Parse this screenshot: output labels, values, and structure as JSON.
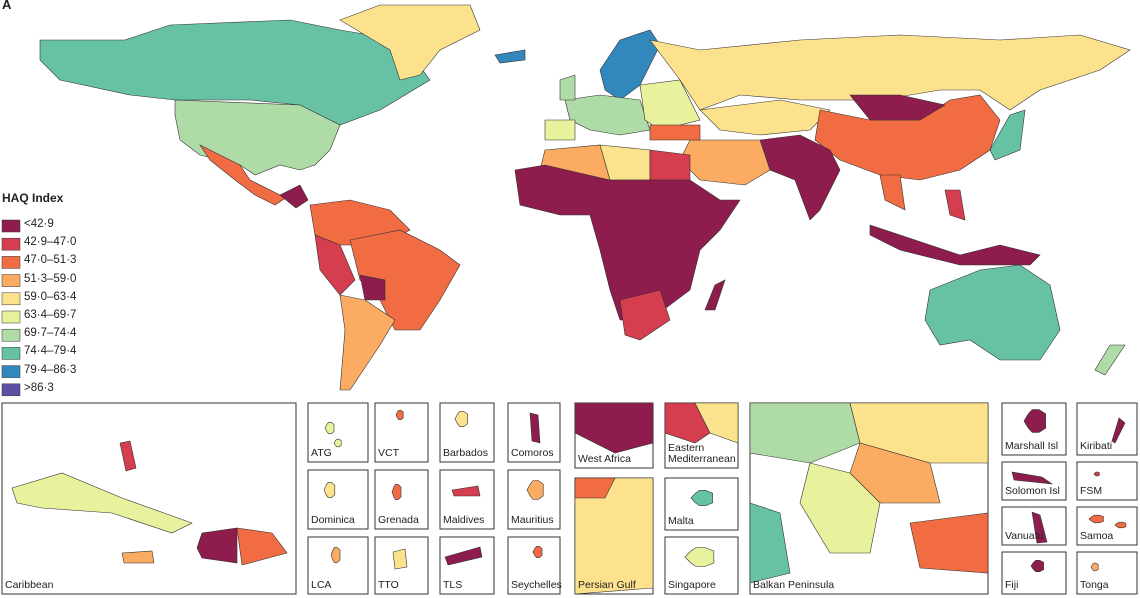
{
  "panel_label": "A",
  "legend": {
    "title": "HAQ Index",
    "items": [
      {
        "label": "<42·9",
        "color": "#8e1c4d"
      },
      {
        "label": "42·9–47·0",
        "color": "#d53e4f"
      },
      {
        "label": "47·0–51·3",
        "color": "#f26c43"
      },
      {
        "label": "51·3–59·0",
        "color": "#fbac62"
      },
      {
        "label": "59·0–63·4",
        "color": "#fde28e"
      },
      {
        "label": "63·4–69·7",
        "color": "#e8f19b"
      },
      {
        "label": "69·7–74·4",
        "color": "#aedba6"
      },
      {
        "label": "74·4–79·4",
        "color": "#67c1a4"
      },
      {
        "label": "79·4–86·3",
        "color": "#3288bd"
      },
      {
        "label": ">86·3",
        "color": "#5e4fa2"
      }
    ]
  },
  "insets": [
    {
      "label": "Caribbean"
    },
    {
      "label": "ATG"
    },
    {
      "label": "VCT"
    },
    {
      "label": "Barbados"
    },
    {
      "label": "Comoros"
    },
    {
      "label": "West Africa"
    },
    {
      "label": "Eastern Mediterranean"
    },
    {
      "label": "Balkan Peninsula"
    },
    {
      "label": "Marshall Isl"
    },
    {
      "label": "Kiribati"
    },
    {
      "label": "Dominica"
    },
    {
      "label": "Grenada"
    },
    {
      "label": "Maldives"
    },
    {
      "label": "Mauritius"
    },
    {
      "label": "Persian Gulf"
    },
    {
      "label": "Malta"
    },
    {
      "label": "Solomon Isl"
    },
    {
      "label": "FSM"
    },
    {
      "label": "LCA"
    },
    {
      "label": "TTO"
    },
    {
      "label": "TLS"
    },
    {
      "label": "Seychelles"
    },
    {
      "label": "Singapore"
    },
    {
      "label": "Vanuatu"
    },
    {
      "label": "Samoa"
    },
    {
      "label": "Fiji"
    },
    {
      "label": "Tonga"
    }
  ]
}
